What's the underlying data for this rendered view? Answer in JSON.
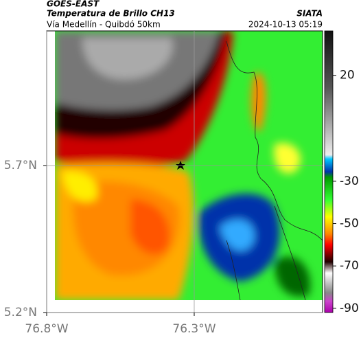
{
  "header": {
    "title": "GOES-EAST",
    "subtitle": "Temperatura de Brillo CH13",
    "source": "SIATA",
    "region": "Vía Medellín - Quibdó 50km",
    "datetime": "2024-10-13 05:19"
  },
  "map": {
    "lat_lim": [
      5.2,
      6.158
    ],
    "lon_lim": [
      -76.8,
      -75.865
    ],
    "lat_ticks": [
      {
        "value": 5.7,
        "label": "5.7°N"
      },
      {
        "value": 5.2,
        "label": "5.2°N"
      }
    ],
    "lon_ticks": [
      {
        "value": -76.8,
        "label": "76.8°W"
      },
      {
        "value": -76.3,
        "label": "76.3°W"
      }
    ]
  },
  "colorbar": {
    "lim": [
      -92,
      41
    ],
    "ticks": [
      20,
      -30,
      -50,
      -70,
      -90
    ]
  }
}
